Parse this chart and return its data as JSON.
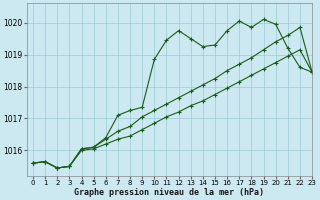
{
  "title": "Graphe pression niveau de la mer (hPa)",
  "bg_color": "#cce8f0",
  "grid_color": "#9ecad8",
  "line_color": "#1a5c1a",
  "xlim": [
    -0.5,
    23
  ],
  "ylim": [
    1015.2,
    1020.6
  ],
  "yticks": [
    1016,
    1017,
    1018,
    1019,
    1020
  ],
  "xticks": [
    0,
    1,
    2,
    3,
    4,
    5,
    6,
    7,
    8,
    9,
    10,
    11,
    12,
    13,
    14,
    15,
    16,
    17,
    18,
    19,
    20,
    21,
    22,
    23
  ],
  "series1_x": [
    0,
    1,
    2,
    3,
    4,
    5,
    6,
    7,
    8,
    9,
    10,
    11,
    12,
    13,
    14,
    15,
    16,
    17,
    18,
    19,
    20,
    21,
    22,
    23
  ],
  "series1_y": [
    1015.6,
    1015.65,
    1015.45,
    1015.5,
    1016.05,
    1016.1,
    1016.4,
    1017.1,
    1017.25,
    1017.35,
    1018.85,
    1019.45,
    1019.75,
    1019.5,
    1019.25,
    1019.3,
    1019.75,
    1020.05,
    1019.85,
    1020.1,
    1019.95,
    1019.2,
    1018.6,
    1018.45
  ],
  "series2_x": [
    0,
    1,
    2,
    3,
    4,
    5,
    6,
    7,
    8,
    9,
    10,
    11,
    12,
    13,
    14,
    15,
    16,
    17,
    18,
    19,
    20,
    21,
    22,
    23
  ],
  "series2_y": [
    1015.6,
    1015.65,
    1015.45,
    1015.5,
    1016.05,
    1016.1,
    1016.35,
    1016.6,
    1016.75,
    1017.05,
    1017.25,
    1017.45,
    1017.65,
    1017.85,
    1018.05,
    1018.25,
    1018.5,
    1018.7,
    1018.9,
    1019.15,
    1019.4,
    1019.6,
    1019.85,
    1018.45
  ],
  "series3_x": [
    0,
    1,
    2,
    3,
    4,
    5,
    6,
    7,
    8,
    9,
    10,
    11,
    12,
    13,
    14,
    15,
    16,
    17,
    18,
    19,
    20,
    21,
    22,
    23
  ],
  "series3_y": [
    1015.6,
    1015.65,
    1015.45,
    1015.5,
    1016.0,
    1016.05,
    1016.2,
    1016.35,
    1016.45,
    1016.65,
    1016.85,
    1017.05,
    1017.2,
    1017.4,
    1017.55,
    1017.75,
    1017.95,
    1018.15,
    1018.35,
    1018.55,
    1018.75,
    1018.95,
    1019.15,
    1018.45
  ]
}
